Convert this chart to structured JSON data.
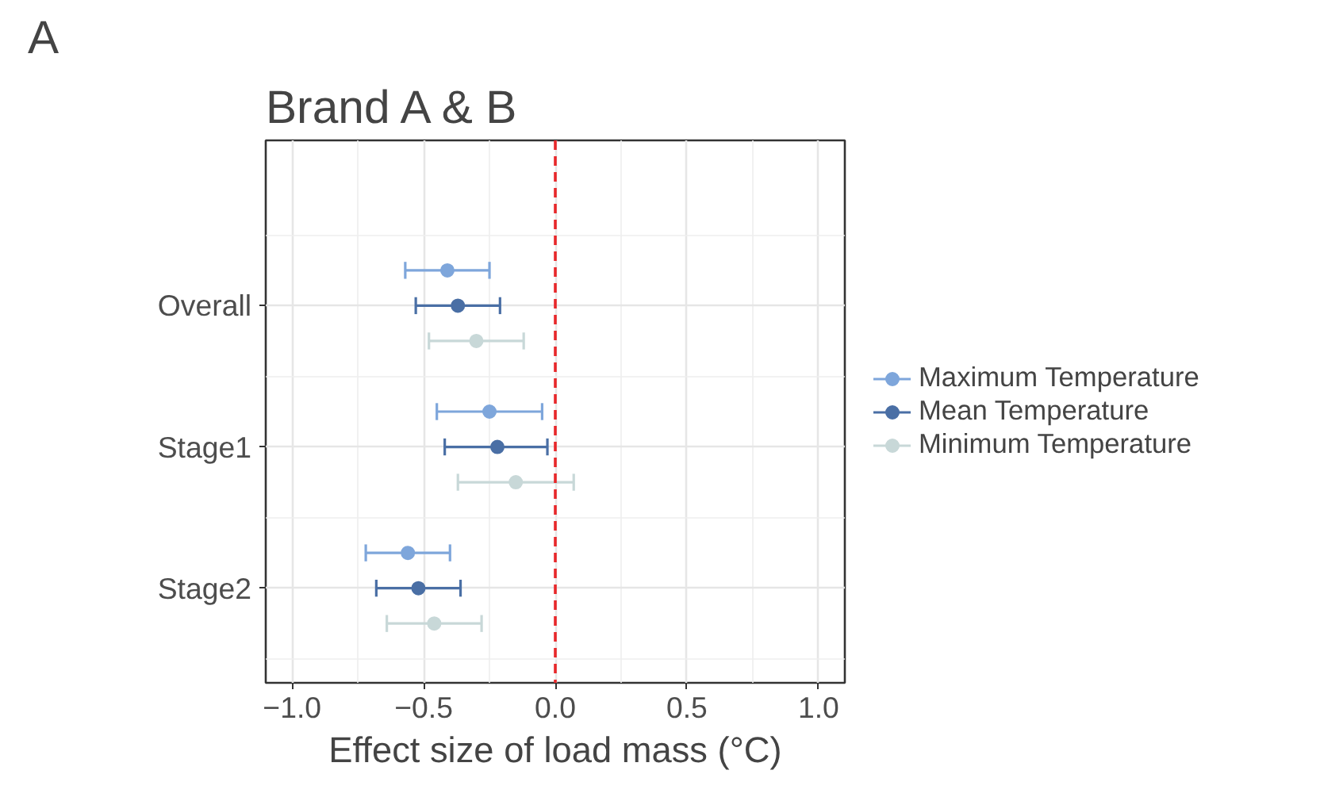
{
  "chart_data": {
    "type": "scatter",
    "orientation": "horizontal",
    "title": "Brand A & B",
    "xlabel": "Effect size of load mass (°C)",
    "annotations": [
      "A"
    ],
    "categories": [
      "Overall",
      "Stage1",
      "Stage2"
    ],
    "series": [
      {
        "name": "Maximum Temperature",
        "color": "#7ea6db",
        "values": [
          -0.41,
          -0.25,
          -0.56
        ],
        "errors": [
          [
            -0.57,
            -0.25
          ],
          [
            -0.45,
            -0.05
          ],
          [
            -0.72,
            -0.4
          ]
        ]
      },
      {
        "name": "Mean Temperature",
        "color": "#4a6fa5",
        "values": [
          -0.37,
          -0.22,
          -0.52
        ],
        "errors": [
          [
            -0.53,
            -0.21
          ],
          [
            -0.42,
            -0.03
          ],
          [
            -0.68,
            -0.36
          ]
        ]
      },
      {
        "name": "Minimum Temperature",
        "color": "#c8d8d8",
        "values": [
          -0.3,
          -0.15,
          -0.46
        ],
        "errors": [
          [
            -0.48,
            -0.12
          ],
          [
            -0.37,
            0.07
          ],
          [
            -0.64,
            -0.28
          ]
        ]
      }
    ],
    "xlim": [
      -1.1,
      1.1
    ],
    "xticks": [
      {
        "value": -1.0,
        "label": "−1.0"
      },
      {
        "value": -0.5,
        "label": "−0.5"
      },
      {
        "value": 0.0,
        "label": "0.0"
      },
      {
        "value": 0.5,
        "label": "0.5"
      },
      {
        "value": 1.0,
        "label": "1.0"
      }
    ],
    "ref_lines": [
      {
        "axis": "x",
        "value": 0,
        "color": "#e8272a",
        "line_style": "dashed"
      }
    ],
    "grid": true,
    "legend": "right",
    "marker": "circle"
  }
}
